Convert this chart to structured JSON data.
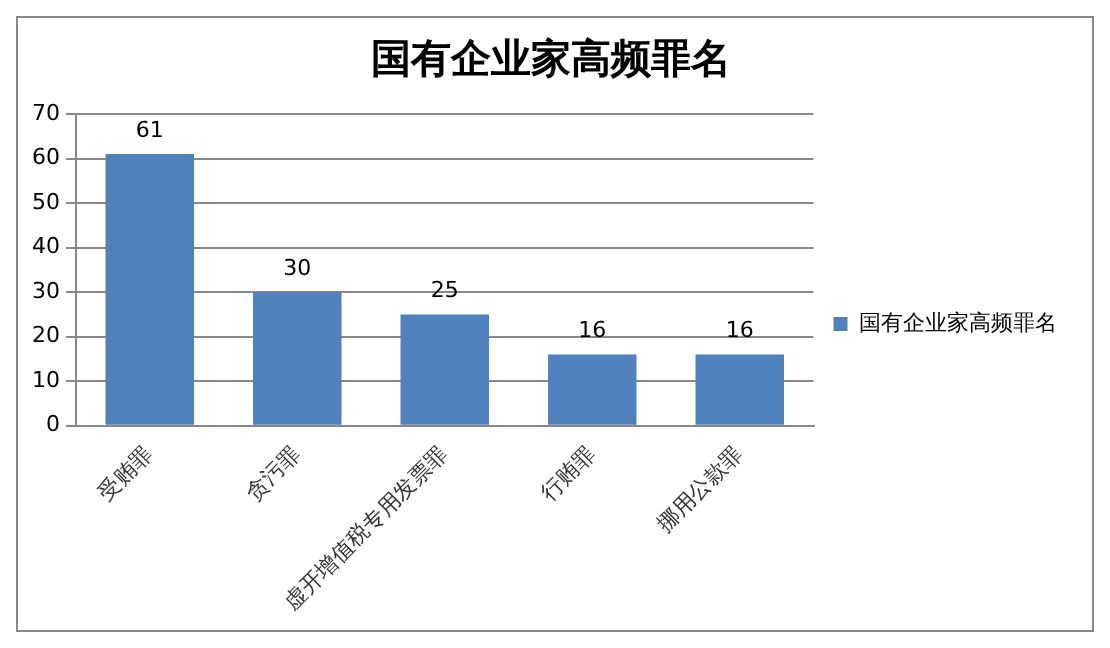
{
  "chart_data": {
    "type": "bar",
    "title": "国有企业家高频罪名",
    "categories": [
      "受贿罪",
      "贪污罪",
      "虚开增值税专用发票罪",
      "行贿罪",
      "挪用公款罪"
    ],
    "series": [
      {
        "name": "国有企业家高频罪名",
        "color": "#4f81bd",
        "values": [
          61,
          30,
          25,
          16,
          16
        ]
      }
    ],
    "ylim": [
      0,
      70
    ],
    "yticks": [
      0,
      10,
      20,
      30,
      40,
      50,
      60,
      70
    ],
    "grid": "y",
    "legend": "right",
    "data_labels": true
  }
}
